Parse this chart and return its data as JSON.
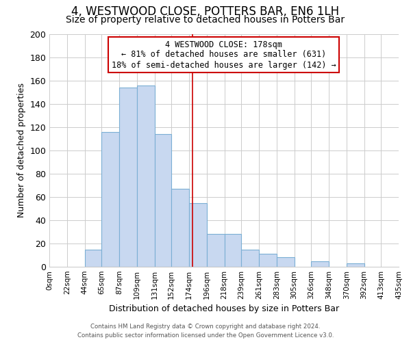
{
  "title": "4, WESTWOOD CLOSE, POTTERS BAR, EN6 1LH",
  "subtitle": "Size of property relative to detached houses in Potters Bar",
  "xlabel": "Distribution of detached houses by size in Potters Bar",
  "ylabel": "Number of detached properties",
  "bar_edges": [
    0,
    22,
    44,
    65,
    87,
    109,
    131,
    152,
    174,
    196,
    218,
    239,
    261,
    283,
    305,
    326,
    348,
    370,
    392,
    413,
    435
  ],
  "bar_heights": [
    0,
    0,
    15,
    116,
    154,
    156,
    114,
    67,
    55,
    28,
    28,
    15,
    11,
    8,
    0,
    5,
    0,
    3,
    0,
    0
  ],
  "tick_labels": [
    "0sqm",
    "22sqm",
    "44sqm",
    "65sqm",
    "87sqm",
    "109sqm",
    "131sqm",
    "152sqm",
    "174sqm",
    "196sqm",
    "218sqm",
    "239sqm",
    "261sqm",
    "283sqm",
    "305sqm",
    "326sqm",
    "348sqm",
    "370sqm",
    "392sqm",
    "413sqm",
    "435sqm"
  ],
  "bar_color": "#c8d8f0",
  "bar_edge_color": "#7bafd4",
  "vline_x": 178,
  "vline_color": "#cc0000",
  "ylim": [
    0,
    200
  ],
  "yticks": [
    0,
    20,
    40,
    60,
    80,
    100,
    120,
    140,
    160,
    180,
    200
  ],
  "annotation_title": "4 WESTWOOD CLOSE: 178sqm",
  "annotation_line1": "← 81% of detached houses are smaller (631)",
  "annotation_line2": "18% of semi-detached houses are larger (142) →",
  "annotation_box_color": "#ffffff",
  "annotation_box_edge": "#cc0000",
  "footer1": "Contains HM Land Registry data © Crown copyright and database right 2024.",
  "footer2": "Contains public sector information licensed under the Open Government Licence v3.0.",
  "bg_color": "#ffffff",
  "grid_color": "#cccccc",
  "title_fontsize": 12,
  "subtitle_fontsize": 10
}
